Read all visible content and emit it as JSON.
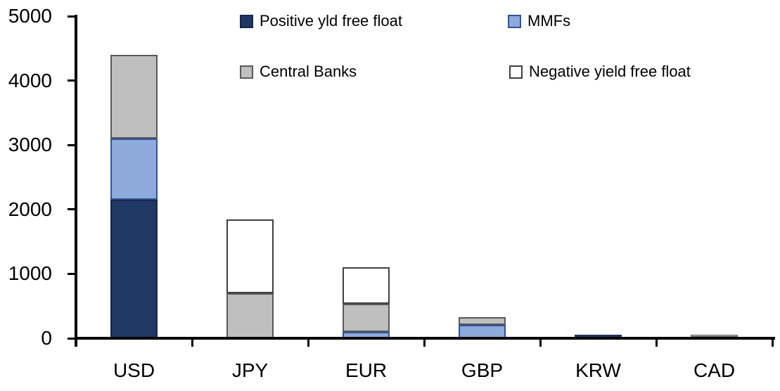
{
  "chart_data": {
    "type": "bar",
    "stacked": true,
    "title": "",
    "xlabel": "",
    "ylabel": "",
    "grid": false,
    "legend_position": "top",
    "background_color": "#FFFFFF",
    "axis_color": "#000000",
    "categories": [
      "USD",
      "JPY",
      "EUR",
      "GBP",
      "KRW",
      "CAD"
    ],
    "ylim": [
      0,
      5000
    ],
    "yticks": [
      "0",
      "1000",
      "2000",
      "3000",
      "4000",
      "5000"
    ],
    "ytick_values": [
      0,
      1000,
      2000,
      3000,
      4000,
      5000
    ],
    "series": [
      {
        "name": "Positive yld free float",
        "color": "#1F3864",
        "border_color": "#16284a",
        "values": [
          2150,
          0,
          0,
          0,
          50,
          25
        ]
      },
      {
        "name": "MMFs",
        "color": "#8EA9DB",
        "border_color": "#2E5597",
        "values": [
          950,
          0,
          100,
          210,
          0,
          0
        ]
      },
      {
        "name": "Central Banks",
        "color": "#BFBFBF",
        "border_color": "#595959",
        "values": [
          1300,
          700,
          430,
          120,
          0,
          30
        ]
      },
      {
        "name": "Negative yield free float",
        "color": "#FFFFFF",
        "border_color": "#404040",
        "values": [
          0,
          1140,
          570,
          0,
          0,
          0
        ]
      }
    ],
    "totals": [
      4400,
      1840,
      1100,
      330,
      50,
      55
    ]
  }
}
